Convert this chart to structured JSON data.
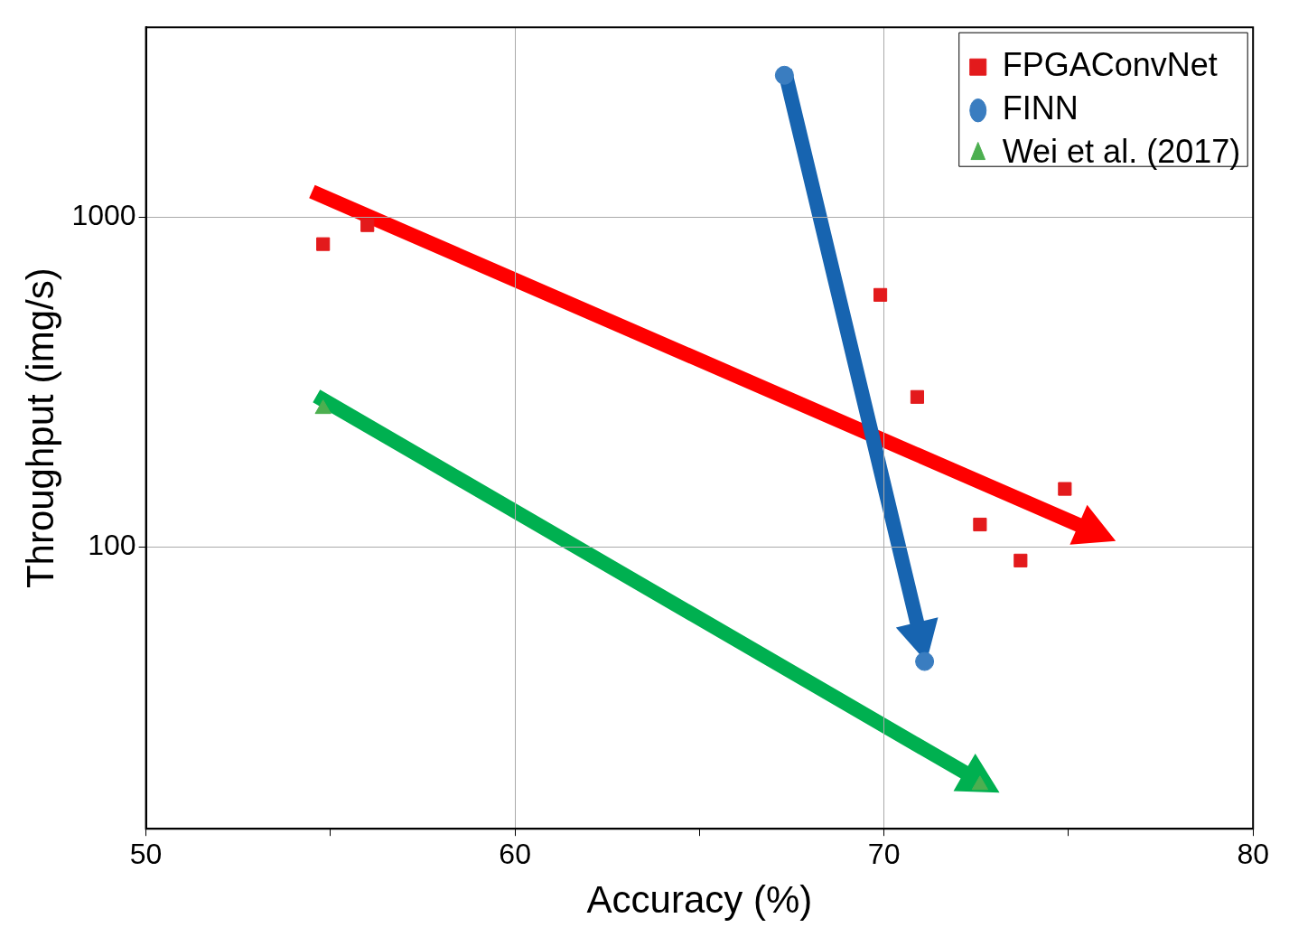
{
  "chart_data": {
    "type": "scatter",
    "xlabel": "Accuracy (%)",
    "ylabel": "Throughput (img/s)",
    "log": "y",
    "grid": true,
    "legend": "top right",
    "xlim": [
      50,
      80
    ],
    "xticks": [
      50,
      {
        "value": 55,
        "label": null
      },
      60,
      {
        "value": 65,
        "label": null
      },
      70,
      {
        "value": 75,
        "label": null
      },
      80
    ],
    "ylim": [
      14,
      3760
    ],
    "yticks": [
      100,
      1000
    ],
    "series": [
      {
        "name": "FPGAConvNet",
        "color": "#e31a1c",
        "marker": "square",
        "x": [
          54.8,
          56.0,
          69.9,
          70.9,
          72.6,
          73.7,
          74.9
        ],
        "values": [
          828,
          945,
          581,
          285,
          117,
          91,
          150
        ]
      },
      {
        "name": "FINN",
        "color": "#3a7dc0",
        "marker": "circle",
        "x": [
          67.3,
          71.1
        ],
        "values": [
          2690,
          45
        ]
      },
      {
        "name": "Wei et al. (2017)",
        "color": "#4caf50",
        "marker": "triangle",
        "x": [
          54.8,
          72.6
        ],
        "values": [
          262,
          19
        ]
      }
    ]
  }
}
